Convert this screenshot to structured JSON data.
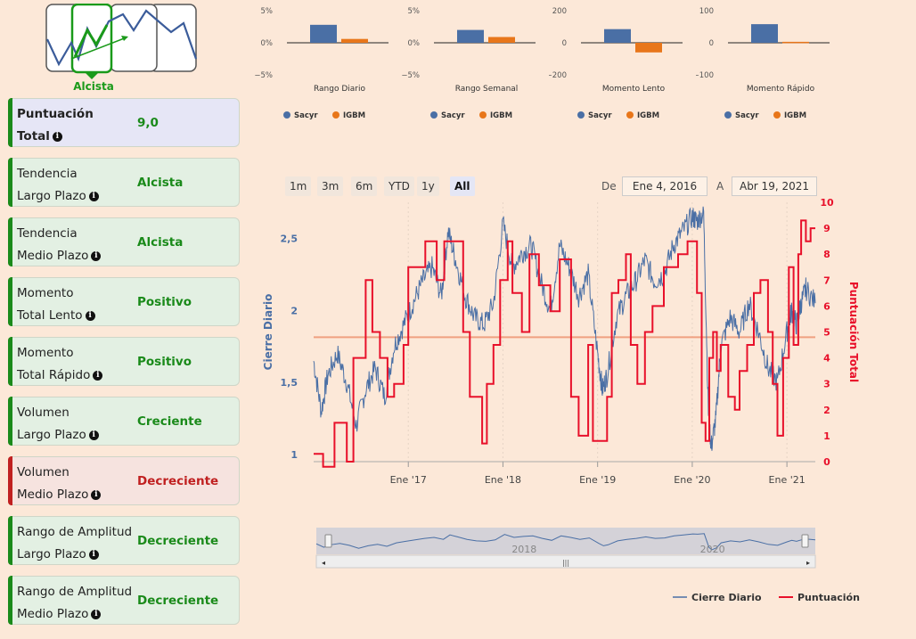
{
  "logo": {
    "label": "Alcista"
  },
  "cards": [
    {
      "line1": "Puntuación",
      "line2": "Total",
      "value": "9,0",
      "state": "score"
    },
    {
      "line1": "Tendencia",
      "line2": "Largo Plazo",
      "value": "Alcista",
      "state": "good"
    },
    {
      "line1": "Tendencia",
      "line2": "Medio Plazo",
      "value": "Alcista",
      "state": "good"
    },
    {
      "line1": "Momento",
      "line2": "Total Lento",
      "value": "Positivo",
      "state": "good"
    },
    {
      "line1": "Momento",
      "line2": "Total Rápido",
      "value": "Positivo",
      "state": "good"
    },
    {
      "line1": "Volumen",
      "line2": "Largo Plazo",
      "value": "Creciente",
      "state": "good"
    },
    {
      "line1": "Volumen",
      "line2": "Medio Plazo",
      "value": "Decreciente",
      "state": "bad"
    },
    {
      "line1": "Rango de Amplitud",
      "line2": "Largo Plazo",
      "value": "Decreciente",
      "state": "good"
    },
    {
      "line1": "Rango de Amplitud",
      "line2": "Medio Plazo",
      "value": "Decreciente",
      "state": "good"
    }
  ],
  "colors": {
    "sacyr": "#4a6fa5",
    "igbm": "#e8761a",
    "score": "#e8102a",
    "good": "#1a8a1a",
    "bad": "#c02020",
    "goodBg": "#e3f0e3",
    "badBg": "#f6e3df",
    "scoreBg": "#e6e6f6"
  },
  "range_selector": {
    "buttons": [
      "1m",
      "3m",
      "6m",
      "YTD",
      "1y",
      "All"
    ],
    "active": "All",
    "from_label": "De",
    "from": "Ene 4, 2016",
    "to_label": "A",
    "to": "Abr 19, 2021"
  },
  "navigator": {
    "labels": [
      "2018",
      "2020"
    ]
  },
  "chart_data": [
    {
      "type": "bar",
      "title": "Rango Diario",
      "ticks": [
        "5%",
        "0%",
        "−5%"
      ],
      "ylim": [
        -5,
        5
      ],
      "series": [
        {
          "name": "Sacyr",
          "values": [
            2.8
          ]
        },
        {
          "name": "IGBM",
          "values": [
            0.6
          ]
        }
      ]
    },
    {
      "type": "bar",
      "title": "Rango Semanal",
      "ticks": [
        "5%",
        "0%",
        "−5%"
      ],
      "ylim": [
        -5,
        5
      ],
      "series": [
        {
          "name": "Sacyr",
          "values": [
            2.0
          ]
        },
        {
          "name": "IGBM",
          "values": [
            0.9
          ]
        }
      ]
    },
    {
      "type": "bar",
      "title": "Momento Lento",
      "ticks": [
        "200",
        "0",
        "−200"
      ],
      "ylim": [
        -200,
        200
      ],
      "series": [
        {
          "name": "Sacyr",
          "values": [
            85
          ]
        },
        {
          "name": "IGBM",
          "values": [
            -60
          ]
        }
      ]
    },
    {
      "type": "bar",
      "title": "Momento Rápido",
      "ticks": [
        "100",
        "0",
        "−100"
      ],
      "ylim": [
        -100,
        100
      ],
      "series": [
        {
          "name": "Sacyr",
          "values": [
            58
          ]
        },
        {
          "name": "IGBM",
          "values": [
            3
          ]
        }
      ]
    },
    {
      "type": "line",
      "title": "",
      "ylabel": "Cierre Diario",
      "y2label": "Puntuación Total",
      "ylim": [
        0.95,
        2.75
      ],
      "y2lim": [
        0,
        10
      ],
      "yticks": [
        "1",
        "1,5",
        "2",
        "2,5"
      ],
      "y2ticks": [
        "0",
        "1",
        "2",
        "3",
        "4",
        "5",
        "6",
        "7",
        "8",
        "9",
        "10"
      ],
      "xticks": [
        "Ene '17",
        "Ene '18",
        "Ene '19",
        "Ene '20",
        "Ene '21"
      ],
      "xlim": [
        2016.0,
        2021.3
      ],
      "hline": 4.8,
      "series": [
        {
          "name": "Cierre Diario",
          "x": [
            2016.0,
            2016.08,
            2016.15,
            2016.25,
            2016.35,
            2016.45,
            2016.55,
            2016.65,
            2016.75,
            2016.85,
            2016.95,
            2017.05,
            2017.15,
            2017.25,
            2017.35,
            2017.42,
            2017.5,
            2017.6,
            2017.7,
            2017.8,
            2017.9,
            2018.0,
            2018.1,
            2018.2,
            2018.3,
            2018.4,
            2018.5,
            2018.6,
            2018.7,
            2018.8,
            2018.9,
            2019.0,
            2019.05,
            2019.1,
            2019.2,
            2019.3,
            2019.4,
            2019.5,
            2019.6,
            2019.7,
            2019.8,
            2019.9,
            2020.0,
            2020.05,
            2020.12,
            2020.17,
            2020.2,
            2020.25,
            2020.3,
            2020.4,
            2020.5,
            2020.6,
            2020.7,
            2020.8,
            2020.9,
            2021.0,
            2021.05,
            2021.1,
            2021.15,
            2021.2,
            2021.3
          ],
          "y": [
            1.65,
            1.3,
            1.55,
            1.7,
            1.5,
            1.2,
            1.45,
            1.6,
            1.4,
            1.75,
            1.9,
            2.05,
            2.2,
            2.3,
            2.1,
            2.55,
            2.35,
            2.1,
            1.95,
            1.9,
            2.05,
            2.6,
            2.3,
            2.4,
            2.45,
            2.2,
            2.0,
            2.45,
            2.3,
            2.1,
            2.25,
            1.7,
            1.45,
            1.55,
            1.95,
            2.1,
            2.2,
            2.35,
            2.2,
            2.25,
            2.45,
            2.55,
            2.65,
            2.62,
            2.68,
            1.3,
            1.05,
            1.25,
            1.75,
            1.95,
            1.85,
            2.05,
            1.85,
            1.6,
            1.5,
            1.85,
            2.0,
            1.9,
            2.05,
            2.15,
            2.05
          ]
        },
        {
          "name": "Puntuación",
          "x": [
            2016.0,
            2016.1,
            2016.15,
            2016.22,
            2016.35,
            2016.42,
            2016.55,
            2016.62,
            2016.7,
            2016.78,
            2016.85,
            2016.95,
            2017.0,
            2017.18,
            2017.3,
            2017.38,
            2017.5,
            2017.58,
            2017.65,
            2017.78,
            2017.83,
            2017.9,
            2017.97,
            2018.05,
            2018.1,
            2018.2,
            2018.28,
            2018.38,
            2018.5,
            2018.6,
            2018.72,
            2018.8,
            2018.9,
            2018.95,
            2019.1,
            2019.15,
            2019.22,
            2019.3,
            2019.35,
            2019.42,
            2019.5,
            2019.58,
            2019.7,
            2019.85,
            2019.95,
            2020.05,
            2020.1,
            2020.14,
            2020.18,
            2020.22,
            2020.26,
            2020.3,
            2020.38,
            2020.45,
            2020.5,
            2020.58,
            2020.65,
            2020.72,
            2020.8,
            2020.85,
            2020.9,
            2020.96,
            2021.02,
            2021.07,
            2021.12,
            2021.15,
            2021.2,
            2021.25,
            2021.3
          ],
          "y": [
            0.3,
            -0.2,
            -0.2,
            1.5,
            0.0,
            4.0,
            7.0,
            5.0,
            4.0,
            2.5,
            3.0,
            4.5,
            7.5,
            8.5,
            7.0,
            8.5,
            8.5,
            5.0,
            2.5,
            0.7,
            3.0,
            4.5,
            7.0,
            8.5,
            6.5,
            5.0,
            8.0,
            6.8,
            5.8,
            7.8,
            2.5,
            1.0,
            4.5,
            0.8,
            2.5,
            6.5,
            7.0,
            8.0,
            4.5,
            3.0,
            5.0,
            6.0,
            7.5,
            8.0,
            8.5,
            6.5,
            1.5,
            0.8,
            4.0,
            5.0,
            3.5,
            4.5,
            2.5,
            2.0,
            3.5,
            4.5,
            6.5,
            7.0,
            5.0,
            3.0,
            1.0,
            4.0,
            7.5,
            4.5,
            8.0,
            9.3,
            8.5,
            9.0,
            9.0
          ]
        }
      ]
    }
  ]
}
